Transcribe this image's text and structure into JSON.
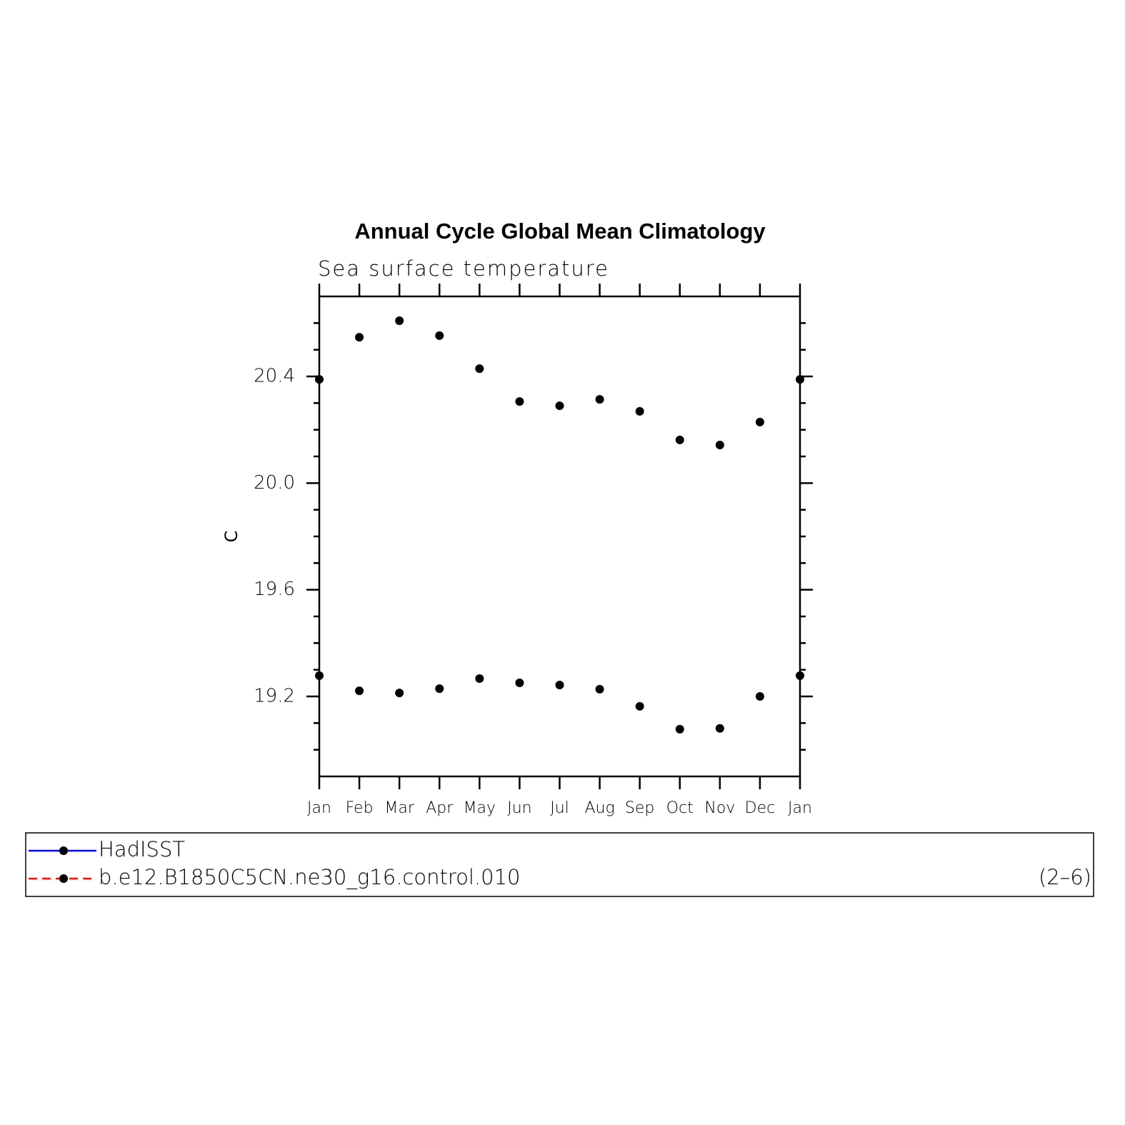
{
  "chart_data": {
    "type": "line",
    "title": "Annual Cycle Global Mean Climatology",
    "subtitle": "Sea surface temperature",
    "y_label": "C",
    "annotation": "(2–6)",
    "categories": [
      "Jan",
      "Feb",
      "Mar",
      "Apr",
      "May",
      "Jun",
      "Jul",
      "Aug",
      "Sep",
      "Oct",
      "Nov",
      "Dec",
      "Jan"
    ],
    "series": [
      {
        "name": "HadISST",
        "color": "#0000ff",
        "linestyle": "solid",
        "marker_color": "#000000",
        "values": [
          20.389,
          20.547,
          20.609,
          20.553,
          20.429,
          20.306,
          20.29,
          20.314,
          20.269,
          20.162,
          20.143,
          20.229,
          20.389
        ]
      },
      {
        "name": "b.e12.B1850C5CN.ne30_g16.control.010",
        "color": "#ff0000",
        "linestyle": "dashed",
        "marker_color": "#000000",
        "values": [
          19.278,
          19.221,
          19.213,
          19.229,
          19.267,
          19.251,
          19.243,
          19.227,
          19.163,
          19.077,
          19.08,
          19.2,
          19.278
        ]
      }
    ],
    "ylim": [
      18.9,
      20.7
    ],
    "yticks": [
      19.2,
      19.6,
      {
        "value": 20,
        "label": "20.0"
      },
      20.4
    ],
    "yminorticks": [
      19.0,
      19.1,
      19.3,
      19.4,
      19.5,
      19.7,
      19.8,
      19.9,
      20.1,
      20.2,
      20.3,
      20.5,
      20.6
    ]
  }
}
